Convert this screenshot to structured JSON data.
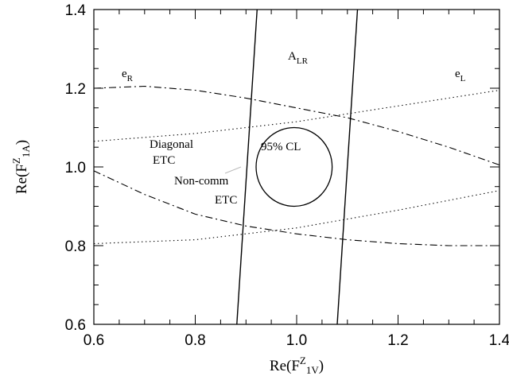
{
  "chart_data": {
    "type": "line",
    "xlabel": {
      "main": "Re(F",
      "sup": "Z",
      "sub": "1V",
      "close": ")"
    },
    "ylabel": {
      "main": "Re(F",
      "sup": "Z",
      "sub": "1A",
      "close": ")"
    },
    "xlim": [
      0.6,
      1.4
    ],
    "ylim": [
      0.6,
      1.4
    ],
    "x_ticks": [
      "0.6",
      "0.8",
      "1.0",
      "1.2",
      "1.4"
    ],
    "y_ticks": [
      "0.6",
      "0.8",
      "1.0",
      "1.2",
      "1.4"
    ],
    "grid": false,
    "series": [
      {
        "name": "A_LR",
        "style": "solid",
        "bands": [
          [
            [
              0.882,
              0.6
            ],
            [
              0.922,
              1.4
            ]
          ],
          [
            [
              1.08,
              0.6
            ],
            [
              1.12,
              1.4
            ]
          ]
        ]
      },
      {
        "name": "e_R",
        "style": "dashdot",
        "branches": [
          [
            [
              0.6,
              1.2
            ],
            [
              0.7,
              1.205
            ],
            [
              0.8,
              1.195
            ],
            [
              0.9,
              1.175
            ],
            [
              1.0,
              1.15
            ],
            [
              1.1,
              1.125
            ],
            [
              1.2,
              1.09
            ],
            [
              1.3,
              1.05
            ],
            [
              1.4,
              1.005
            ]
          ],
          [
            [
              0.6,
              0.99
            ],
            [
              0.7,
              0.93
            ],
            [
              0.8,
              0.88
            ],
            [
              0.9,
              0.85
            ],
            [
              1.0,
              0.83
            ],
            [
              1.1,
              0.815
            ],
            [
              1.2,
              0.805
            ],
            [
              1.3,
              0.8
            ],
            [
              1.4,
              0.8
            ]
          ]
        ]
      },
      {
        "name": "e_L",
        "style": "dotted",
        "branches": [
          [
            [
              0.6,
              1.065
            ],
            [
              0.8,
              1.085
            ],
            [
              1.0,
              1.115
            ],
            [
              1.2,
              1.155
            ],
            [
              1.4,
              1.195
            ]
          ],
          [
            [
              0.6,
              0.805
            ],
            [
              0.8,
              0.815
            ],
            [
              1.0,
              0.845
            ],
            [
              1.2,
              0.89
            ],
            [
              1.4,
              0.94
            ]
          ]
        ]
      },
      {
        "name": "95% CL",
        "style": "solid",
        "ellipse": {
          "cx": 0.995,
          "cy": 1.0,
          "rx": 0.075,
          "ry": 0.1
        }
      }
    ],
    "annotations": {
      "a_lr": {
        "main": "A",
        "sub": "LR"
      },
      "e_r": {
        "main": "e",
        "sub": "R"
      },
      "e_l": {
        "main": "e",
        "sub": "L"
      },
      "cl95": "95% CL",
      "diagonal_1": "Diagonal",
      "diagonal_2": "ETC",
      "noncomm_1": "Non-comm",
      "noncomm_2": "ETC"
    }
  }
}
